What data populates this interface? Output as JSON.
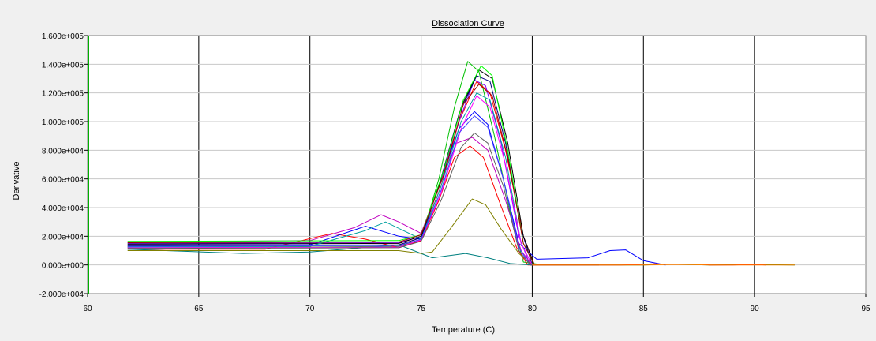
{
  "chart_data": {
    "type": "line",
    "title": "Dissociation Curve",
    "xlabel": "Temperature (C)",
    "ylabel": "Derivative",
    "xlim": [
      60,
      95
    ],
    "ylim": [
      -20000,
      160000
    ],
    "x_ticks": [
      60,
      65,
      70,
      75,
      80,
      85,
      90,
      95
    ],
    "x_tick_labels": [
      "60",
      "65",
      "70",
      "75",
      "80",
      "85",
      "90",
      "95"
    ],
    "y_ticks": [
      -20000,
      0,
      20000,
      40000,
      60000,
      80000,
      100000,
      120000,
      140000,
      160000
    ],
    "y_tick_labels": [
      "-2.000e+004",
      "0.000e+000",
      "2.000e+004",
      "4.000e+004",
      "6.000e+004",
      "8.000e+004",
      "1.000e+005",
      "1.200e+005",
      "1.400e+005",
      "1.600e+005"
    ],
    "grid": "vertical",
    "legend": "none",
    "series": [
      {
        "color": "#00c000",
        "points": [
          [
            61.8,
            12000
          ],
          [
            70,
            12500
          ],
          [
            74,
            13000
          ],
          [
            75,
            18000
          ],
          [
            75.8,
            60000
          ],
          [
            76.5,
            110000
          ],
          [
            77.1,
            142000
          ],
          [
            77.6,
            135000
          ],
          [
            78.3,
            90000
          ],
          [
            79.1,
            30000
          ],
          [
            79.6,
            2000
          ],
          [
            80.5,
            0
          ],
          [
            83,
            0
          ]
        ]
      },
      {
        "color": "#ff0000",
        "points": [
          [
            61.8,
            11000
          ],
          [
            68,
            11000
          ],
          [
            71,
            22000
          ],
          [
            72.5,
            18000
          ],
          [
            74,
            12000
          ],
          [
            75,
            17000
          ],
          [
            75.8,
            45000
          ],
          [
            76.5,
            75000
          ],
          [
            77.2,
            83000
          ],
          [
            77.8,
            75000
          ],
          [
            78.5,
            45000
          ],
          [
            79.3,
            12000
          ],
          [
            79.8,
            0
          ],
          [
            82,
            0
          ]
        ]
      },
      {
        "color": "#ff0000",
        "points": [
          [
            61.8,
            13000
          ],
          [
            74,
            14000
          ],
          [
            75,
            19000
          ],
          [
            75.9,
            55000
          ],
          [
            76.7,
            100000
          ],
          [
            77.5,
            128000
          ],
          [
            78.1,
            120000
          ],
          [
            78.8,
            80000
          ],
          [
            79.6,
            20000
          ],
          [
            80.1,
            0
          ],
          [
            83,
            0
          ]
        ]
      },
      {
        "color": "#0000ff",
        "points": [
          [
            61.8,
            14000
          ],
          [
            70,
            14000
          ],
          [
            72.5,
            27000
          ],
          [
            74,
            20000
          ],
          [
            75,
            18000
          ],
          [
            75.9,
            60000
          ],
          [
            76.7,
            95000
          ],
          [
            77.4,
            107000
          ],
          [
            78,
            98000
          ],
          [
            78.7,
            60000
          ],
          [
            79.4,
            15000
          ],
          [
            80.2,
            4000
          ],
          [
            82.5,
            5000
          ],
          [
            83.5,
            10000
          ],
          [
            84.2,
            10500
          ],
          [
            85,
            3000
          ],
          [
            86,
            0
          ]
        ]
      },
      {
        "color": "#8000ff",
        "points": [
          [
            61.8,
            15000
          ],
          [
            74,
            15500
          ],
          [
            75,
            20000
          ],
          [
            75.8,
            55000
          ],
          [
            76.7,
            100000
          ],
          [
            77.4,
            129000
          ],
          [
            77.9,
            125000
          ],
          [
            78.6,
            85000
          ],
          [
            79.4,
            20000
          ],
          [
            79.9,
            0
          ],
          [
            83,
            0
          ]
        ]
      },
      {
        "color": "#c000c0",
        "points": [
          [
            61.8,
            16000
          ],
          [
            70,
            17000
          ],
          [
            72,
            26000
          ],
          [
            73.2,
            35000
          ],
          [
            74,
            30000
          ],
          [
            75,
            22000
          ],
          [
            75.8,
            55000
          ],
          [
            76.6,
            85000
          ],
          [
            77.3,
            89000
          ],
          [
            78,
            80000
          ],
          [
            78.8,
            45000
          ],
          [
            79.5,
            10000
          ],
          [
            80,
            0
          ],
          [
            82,
            0
          ]
        ]
      },
      {
        "color": "#008080",
        "points": [
          [
            61.8,
            11000
          ],
          [
            67,
            8000
          ],
          [
            70,
            9000
          ],
          [
            74,
            14000
          ],
          [
            75,
            8000
          ],
          [
            75.5,
            5000
          ],
          [
            77,
            8000
          ],
          [
            78,
            5000
          ],
          [
            79,
            1000
          ],
          [
            80,
            0
          ],
          [
            82,
            0
          ]
        ]
      },
      {
        "color": "#808000",
        "points": [
          [
            61.8,
            10000
          ],
          [
            74,
            10000
          ],
          [
            75,
            8000
          ],
          [
            75.5,
            9000
          ],
          [
            76.3,
            25000
          ],
          [
            77.3,
            46000
          ],
          [
            77.9,
            42000
          ],
          [
            78.6,
            25000
          ],
          [
            79.4,
            8000
          ],
          [
            80,
            0
          ],
          [
            82,
            0
          ]
        ]
      },
      {
        "color": "#000080",
        "points": [
          [
            61.8,
            13500
          ],
          [
            74,
            14000
          ],
          [
            75,
            19000
          ],
          [
            75.8,
            55000
          ],
          [
            76.7,
            105000
          ],
          [
            77.5,
            132000
          ],
          [
            78.1,
            128000
          ],
          [
            78.8,
            85000
          ],
          [
            79.5,
            25000
          ],
          [
            80,
            0
          ],
          [
            83,
            0
          ]
        ]
      },
      {
        "color": "#000000",
        "points": [
          [
            61.8,
            14500
          ],
          [
            74,
            15000
          ],
          [
            75,
            20000
          ],
          [
            75.9,
            60000
          ],
          [
            76.8,
            110000
          ],
          [
            77.6,
            136000
          ],
          [
            78.2,
            130000
          ],
          [
            78.9,
            85000
          ],
          [
            79.6,
            20000
          ],
          [
            80.1,
            0
          ],
          [
            83,
            0
          ]
        ]
      },
      {
        "color": "#00a0a0",
        "points": [
          [
            61.8,
            12500
          ],
          [
            70,
            13000
          ],
          [
            72.5,
            24000
          ],
          [
            73.4,
            30000
          ],
          [
            74.2,
            24000
          ],
          [
            75,
            18000
          ],
          [
            75.9,
            55000
          ],
          [
            76.8,
            100000
          ],
          [
            77.5,
            120000
          ],
          [
            78.1,
            115000
          ],
          [
            78.8,
            75000
          ],
          [
            79.5,
            15000
          ],
          [
            80,
            0
          ],
          [
            83,
            0
          ]
        ]
      },
      {
        "color": "#00ff00",
        "points": [
          [
            61.8,
            16500
          ],
          [
            74,
            17000
          ],
          [
            75,
            21000
          ],
          [
            76,
            65000
          ],
          [
            76.9,
            115000
          ],
          [
            77.7,
            139000
          ],
          [
            78.2,
            132000
          ],
          [
            78.9,
            80000
          ],
          [
            79.6,
            15000
          ],
          [
            80.1,
            0
          ],
          [
            83,
            0
          ]
        ]
      },
      {
        "color": "#ff00ff",
        "points": [
          [
            61.8,
            12000
          ],
          [
            74,
            12500
          ],
          [
            75,
            17500
          ],
          [
            75.9,
            50000
          ],
          [
            76.8,
            95000
          ],
          [
            77.5,
            118000
          ],
          [
            78.1,
            110000
          ],
          [
            78.8,
            70000
          ],
          [
            79.5,
            15000
          ],
          [
            80,
            0
          ],
          [
            83,
            0
          ]
        ]
      },
      {
        "color": "#4040ff",
        "points": [
          [
            61.8,
            13000
          ],
          [
            74,
            13500
          ],
          [
            75,
            18000
          ],
          [
            75.9,
            52000
          ],
          [
            76.7,
            92000
          ],
          [
            77.4,
            104000
          ],
          [
            78,
            96000
          ],
          [
            78.7,
            60000
          ],
          [
            79.4,
            12000
          ],
          [
            79.9,
            0
          ],
          [
            83,
            0
          ]
        ]
      },
      {
        "color": "#a00000",
        "points": [
          [
            61.8,
            15500
          ],
          [
            74,
            16000
          ],
          [
            75,
            21000
          ],
          [
            76,
            62000
          ],
          [
            76.9,
            112000
          ],
          [
            77.6,
            126000
          ],
          [
            78.2,
            118000
          ],
          [
            78.9,
            75000
          ],
          [
            79.6,
            15000
          ],
          [
            80.1,
            0
          ],
          [
            83,
            0
          ]
        ]
      },
      {
        "color": "#606060",
        "points": [
          [
            61.8,
            11500
          ],
          [
            74,
            12000
          ],
          [
            75,
            16500
          ],
          [
            75.9,
            45000
          ],
          [
            76.8,
            82000
          ],
          [
            77.4,
            92000
          ],
          [
            78,
            85000
          ],
          [
            78.7,
            55000
          ],
          [
            79.4,
            10000
          ],
          [
            79.9,
            0
          ],
          [
            83,
            0
          ]
        ]
      },
      {
        "color": "#008000",
        "points": [
          [
            80,
            0
          ],
          [
            82,
            0
          ],
          [
            85,
            0
          ],
          [
            86,
            500
          ],
          [
            88,
            0
          ],
          [
            90,
            300
          ],
          [
            91.8,
            0
          ]
        ]
      },
      {
        "color": "#ff0000",
        "points": [
          [
            80,
            0
          ],
          [
            84,
            0
          ],
          [
            85.5,
            800
          ],
          [
            86,
            500
          ],
          [
            87.5,
            600
          ],
          [
            88,
            0
          ],
          [
            89,
            0
          ],
          [
            90,
            400
          ],
          [
            90.5,
            0
          ]
        ]
      },
      {
        "color": "#ff8000",
        "points": [
          [
            80,
            0
          ],
          [
            85,
            0
          ],
          [
            86.5,
            300
          ],
          [
            88,
            0
          ],
          [
            91.8,
            0
          ]
        ]
      }
    ]
  }
}
